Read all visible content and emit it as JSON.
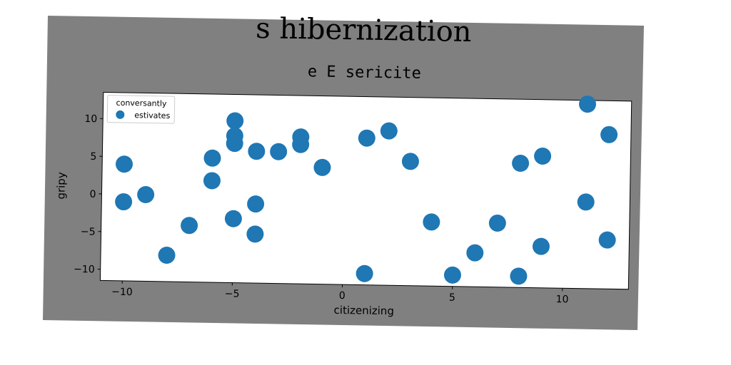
{
  "colors": {
    "figure_bg": "#808080",
    "plot_bg": "#ffffff",
    "marker": "#1f77b4"
  },
  "chart_data": {
    "type": "scatter",
    "title": "s hibernization",
    "subtitle": "e E sericite",
    "xlabel": "citizenizing",
    "ylabel": "gripy",
    "xlim": [
      -11,
      13
    ],
    "ylim": [
      -11.5,
      13.5
    ],
    "xticks": [
      -10,
      -5,
      0,
      5,
      10
    ],
    "xtick_labels": [
      "−10",
      "−5",
      "0",
      "5",
      "10"
    ],
    "yticks": [
      -10,
      -5,
      0,
      5,
      10
    ],
    "ytick_labels": [
      "−10",
      "−5",
      "0",
      "5",
      "10"
    ],
    "grid": false,
    "legend": {
      "title": "conversantly",
      "position": "top-left",
      "entries": [
        "estivates"
      ]
    },
    "series": [
      {
        "name": "estivates",
        "x": [
          -10,
          -10,
          -9,
          -8,
          -7,
          -6,
          -6,
          -5,
          -5,
          -5,
          -5,
          -4,
          -4,
          -4,
          -3,
          -2,
          -2,
          -1,
          1,
          1,
          2,
          3,
          4,
          5,
          6,
          7,
          8,
          8,
          9,
          9,
          11,
          11,
          12,
          12
        ],
        "y": [
          4,
          -1,
          0,
          -8,
          -4,
          5,
          2,
          10,
          8,
          7,
          -3,
          6,
          -1,
          -5,
          6,
          8,
          7,
          4,
          8,
          -10,
          9,
          5,
          -3,
          -10,
          -7,
          -3,
          5,
          -10,
          6,
          -6,
          13,
          0,
          9,
          -5
        ]
      }
    ]
  }
}
